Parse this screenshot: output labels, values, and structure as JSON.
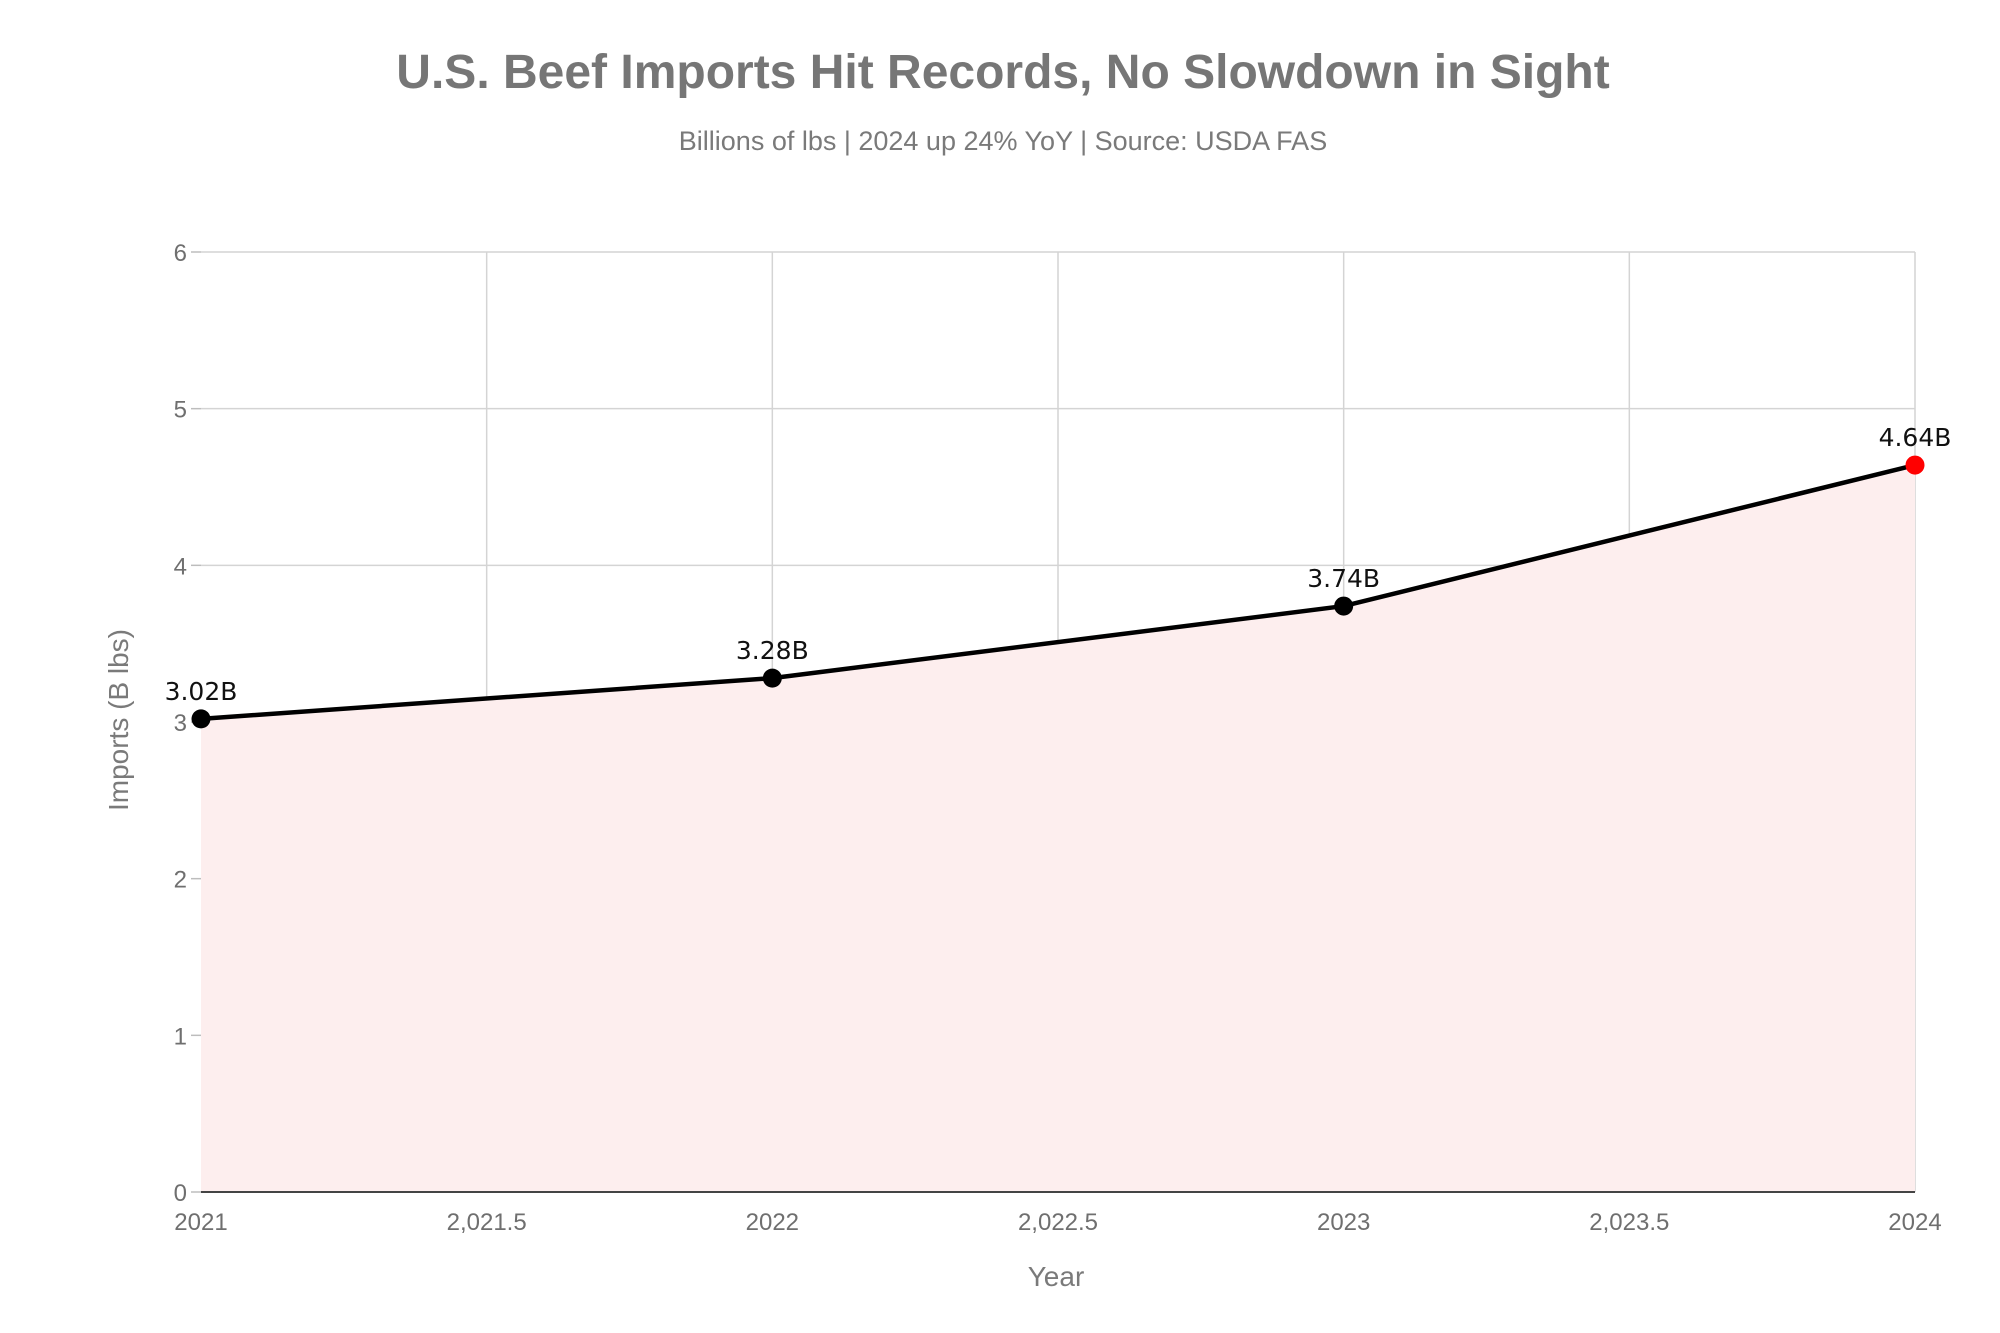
{
  "chart_data": {
    "type": "area",
    "title": "U.S. Beef Imports Hit Records, No Slowdown in Sight",
    "subtitle": "Billions of lbs | 2024 up 24% YoY | Source: USDA FAS",
    "xlabel": "Year",
    "ylabel": "Imports (B lbs)",
    "xlim": [
      2021,
      2024
    ],
    "ylim": [
      0,
      6
    ],
    "x_ticks": [
      2021,
      2021.5,
      2022,
      2022.5,
      2023,
      2023.5,
      2024
    ],
    "x_tick_labels": [
      "2021",
      "2,021.5",
      "2022",
      "2,022.5",
      "2023",
      "2,023.5",
      "2024"
    ],
    "y_ticks": [
      0,
      1,
      2,
      3,
      4,
      5,
      6
    ],
    "y_tick_labels": [
      "0",
      "1",
      "2",
      "3",
      "4",
      "5",
      "6"
    ],
    "grid": true,
    "legend": "none",
    "series": [
      {
        "x": [
          2021,
          2022,
          2023,
          2024
        ],
        "y": [
          3.02,
          3.28,
          3.74,
          4.64
        ],
        "labels": [
          "3.02B",
          "3.28B",
          "3.74B",
          "4.64B"
        ],
        "line_color": "#000000",
        "fill_color": "#fdeeee",
        "marker_color": "#000000",
        "highlight_color": "#ff0000",
        "highlight_index": 3
      }
    ]
  }
}
